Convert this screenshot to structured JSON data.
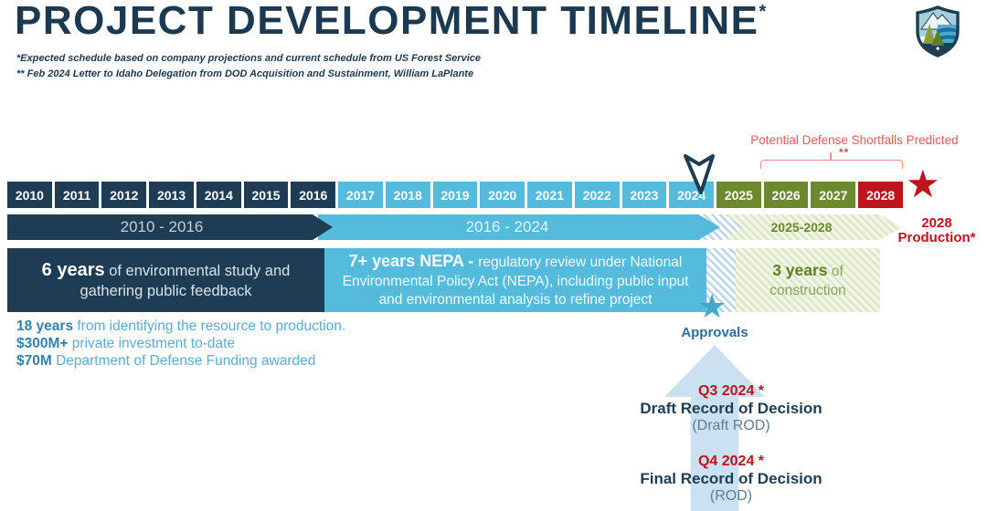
{
  "colors": {
    "navy": "#1E3D54",
    "light_blue": "#55BBDC",
    "olive_green": "#6B8A2D",
    "red": "#BE1420",
    "soft_red": "#DC5F55",
    "pale_arrow_blue": "#CBE1F2",
    "teal_text_bold": "#3380A9",
    "teal_text": "#5BACD1"
  },
  "header": {
    "title": "PROJECT DEVELOPMENT TIMELINE",
    "title_asterisk": "*",
    "footnote1": "*Expected schedule based on company projections and current schedule from US Forest Service",
    "footnote2": "** Feb 2024 Letter to Idaho Delegation from DOD Acquisition and Sustainment, William LaPlante"
  },
  "callout": {
    "label": "Potential Defense Shortfalls Predicted",
    "asterisks": "**"
  },
  "timeline": {
    "years": [
      {
        "label": "2010",
        "phase": "navy"
      },
      {
        "label": "2011",
        "phase": "navy"
      },
      {
        "label": "2012",
        "phase": "navy"
      },
      {
        "label": "2013",
        "phase": "navy"
      },
      {
        "label": "2014",
        "phase": "navy"
      },
      {
        "label": "2015",
        "phase": "navy"
      },
      {
        "label": "2016",
        "phase": "navy"
      },
      {
        "label": "2017",
        "phase": "blue"
      },
      {
        "label": "2018",
        "phase": "blue"
      },
      {
        "label": "2019",
        "phase": "blue"
      },
      {
        "label": "2020",
        "phase": "blue"
      },
      {
        "label": "2021",
        "phase": "blue"
      },
      {
        "label": "2022",
        "phase": "blue"
      },
      {
        "label": "2023",
        "phase": "blue"
      },
      {
        "label": "2024",
        "phase": "blue"
      },
      {
        "label": "2025",
        "phase": "olive"
      },
      {
        "label": "2026",
        "phase": "olive"
      },
      {
        "label": "2027",
        "phase": "olive"
      },
      {
        "label": "2028",
        "phase": "red"
      }
    ],
    "bands": [
      {
        "label": "2010 - 2016"
      },
      {
        "label": "2016 - 2024"
      },
      {
        "label": "2025-2028"
      }
    ],
    "production": {
      "line1": "2028",
      "line2": "Production*"
    }
  },
  "blocks": {
    "study": {
      "bold": "6 years",
      "rest": " of environmental study and gathering public feedback"
    },
    "nepa": {
      "bold": "7+ years NEPA - ",
      "rest": "regulatory review under National Environmental Policy Act (NEPA), including public input and environmental analysis to refine project"
    },
    "construction": {
      "bold": "3 years",
      "rest": " of construction"
    }
  },
  "stats": [
    {
      "bold": "18 years",
      "rest": " from identifying the resource to production."
    },
    {
      "bold": "$300M+",
      "rest": " private investment to-date"
    },
    {
      "bold": "$70M",
      "rest": " Department of Defense Funding awarded"
    }
  ],
  "approvals": {
    "label": "Approvals",
    "star_glyph": "★"
  },
  "production_star_glyph": "★",
  "milestones": [
    {
      "date": "Q3 2024 *",
      "title": "Draft Record of Decision",
      "sub": "(Draft ROD)"
    },
    {
      "date": "Q4 2024 *",
      "title": "Final Record of Decision",
      "sub": "(ROD)"
    }
  ]
}
